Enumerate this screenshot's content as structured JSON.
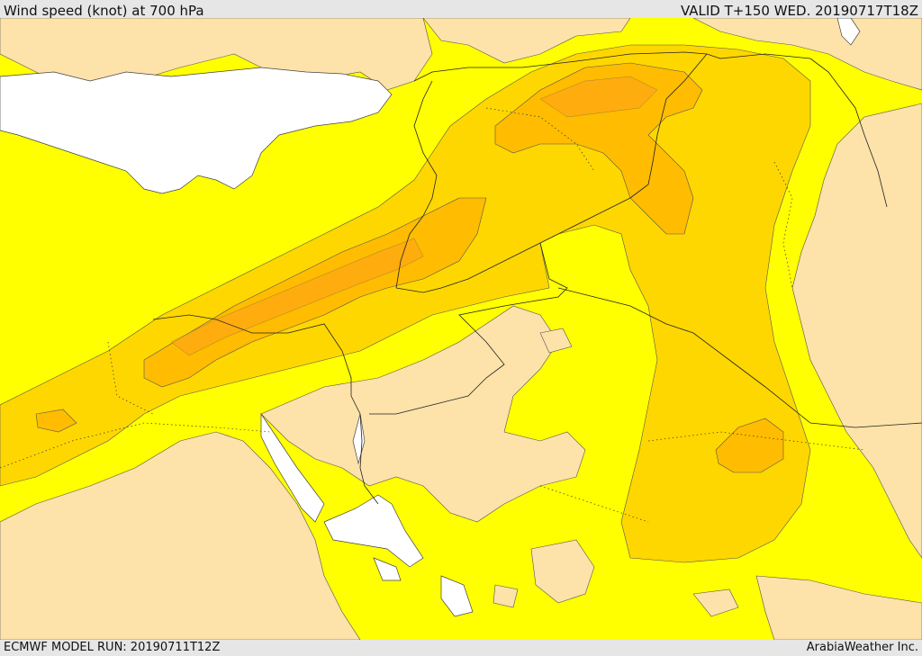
{
  "header": {
    "title": "Wind speed (knot) at 700 hPa",
    "valid": "VALID T+150 WED. 20190717T18Z"
  },
  "footer": {
    "model_run": "ECMWF MODEL RUN: 20190711T12Z",
    "credit": "ArabiaWeather Inc."
  },
  "legend_colors": {
    "calm": "#fde2aa",
    "light": "#ffff00",
    "moderate": "#ffd700",
    "fresh": "#ffbc00",
    "strong": "#ff9f1a",
    "water": "#ffffff"
  }
}
